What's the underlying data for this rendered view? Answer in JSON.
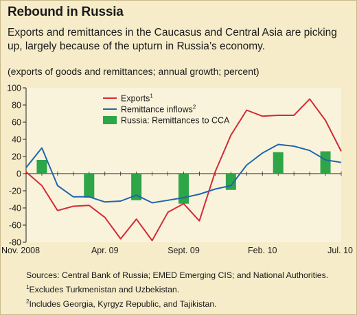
{
  "title": "Rebound in Russia",
  "subtitle": "Exports and remittances in the Caucasus and Central Asia are picking up, largely because of the upturn in Russia’s economy.",
  "unit_note": "(exports of goods and remittances; annual growth; percent)",
  "colors": {
    "background": "#f6ecc9",
    "plot_background": "#faf3dc",
    "exports": "#d32a35",
    "remittance": "#1e66ad",
    "bars": "#2ea547"
  },
  "chart_data": {
    "type": "line",
    "ylim": [
      -80,
      100
    ],
    "yticks": [
      100,
      80,
      60,
      40,
      20,
      0,
      -20,
      -40,
      -60,
      -80
    ],
    "x_tick_labels": [
      {
        "index": 0,
        "label": "Nov. 2008"
      },
      {
        "index": 5,
        "label": "Apr. 09"
      },
      {
        "index": 10,
        "label": "Sept. 09"
      },
      {
        "index": 15,
        "label": "Feb. 10"
      },
      {
        "index": 20,
        "label": "Jul. 10"
      }
    ],
    "n_points": 21,
    "series": [
      {
        "name": "Exports",
        "footnote": "1",
        "type": "line",
        "values": [
          2,
          -14,
          -43,
          -38,
          -37,
          -51,
          -76,
          -53,
          -78,
          -45,
          -35,
          -55,
          2,
          45,
          74,
          67,
          68,
          68,
          87,
          62,
          26
        ]
      },
      {
        "name": "Remittance inflows",
        "footnote": "2",
        "type": "line",
        "values": [
          7,
          30,
          -14,
          -27,
          -27,
          -33,
          -32,
          -25,
          -34,
          -31,
          -28,
          -24,
          -18,
          -14,
          10,
          24,
          34,
          32,
          27,
          16,
          13
        ]
      },
      {
        "name": "Russia: Remittances to CCA",
        "type": "bar",
        "points": [
          {
            "index": 1,
            "value": 16
          },
          {
            "index": 4,
            "value": -28
          },
          {
            "index": 7,
            "value": -31
          },
          {
            "index": 10,
            "value": -35
          },
          {
            "index": 13,
            "value": -19
          },
          {
            "index": 16,
            "value": 25
          },
          {
            "index": 19,
            "value": 26
          }
        ]
      }
    ],
    "legend_position": "top-center"
  },
  "sources": {
    "line1": "Sources: Central Bank of Russia; EMED Emerging CIS; and National Authorities.",
    "note1_mark": "1",
    "note1": "Excludes Turkmenistan and Uzbekistan.",
    "note2_mark": "2",
    "note2": "Includes Georgia, Kyrgyz Republic, and Tajikistan."
  }
}
